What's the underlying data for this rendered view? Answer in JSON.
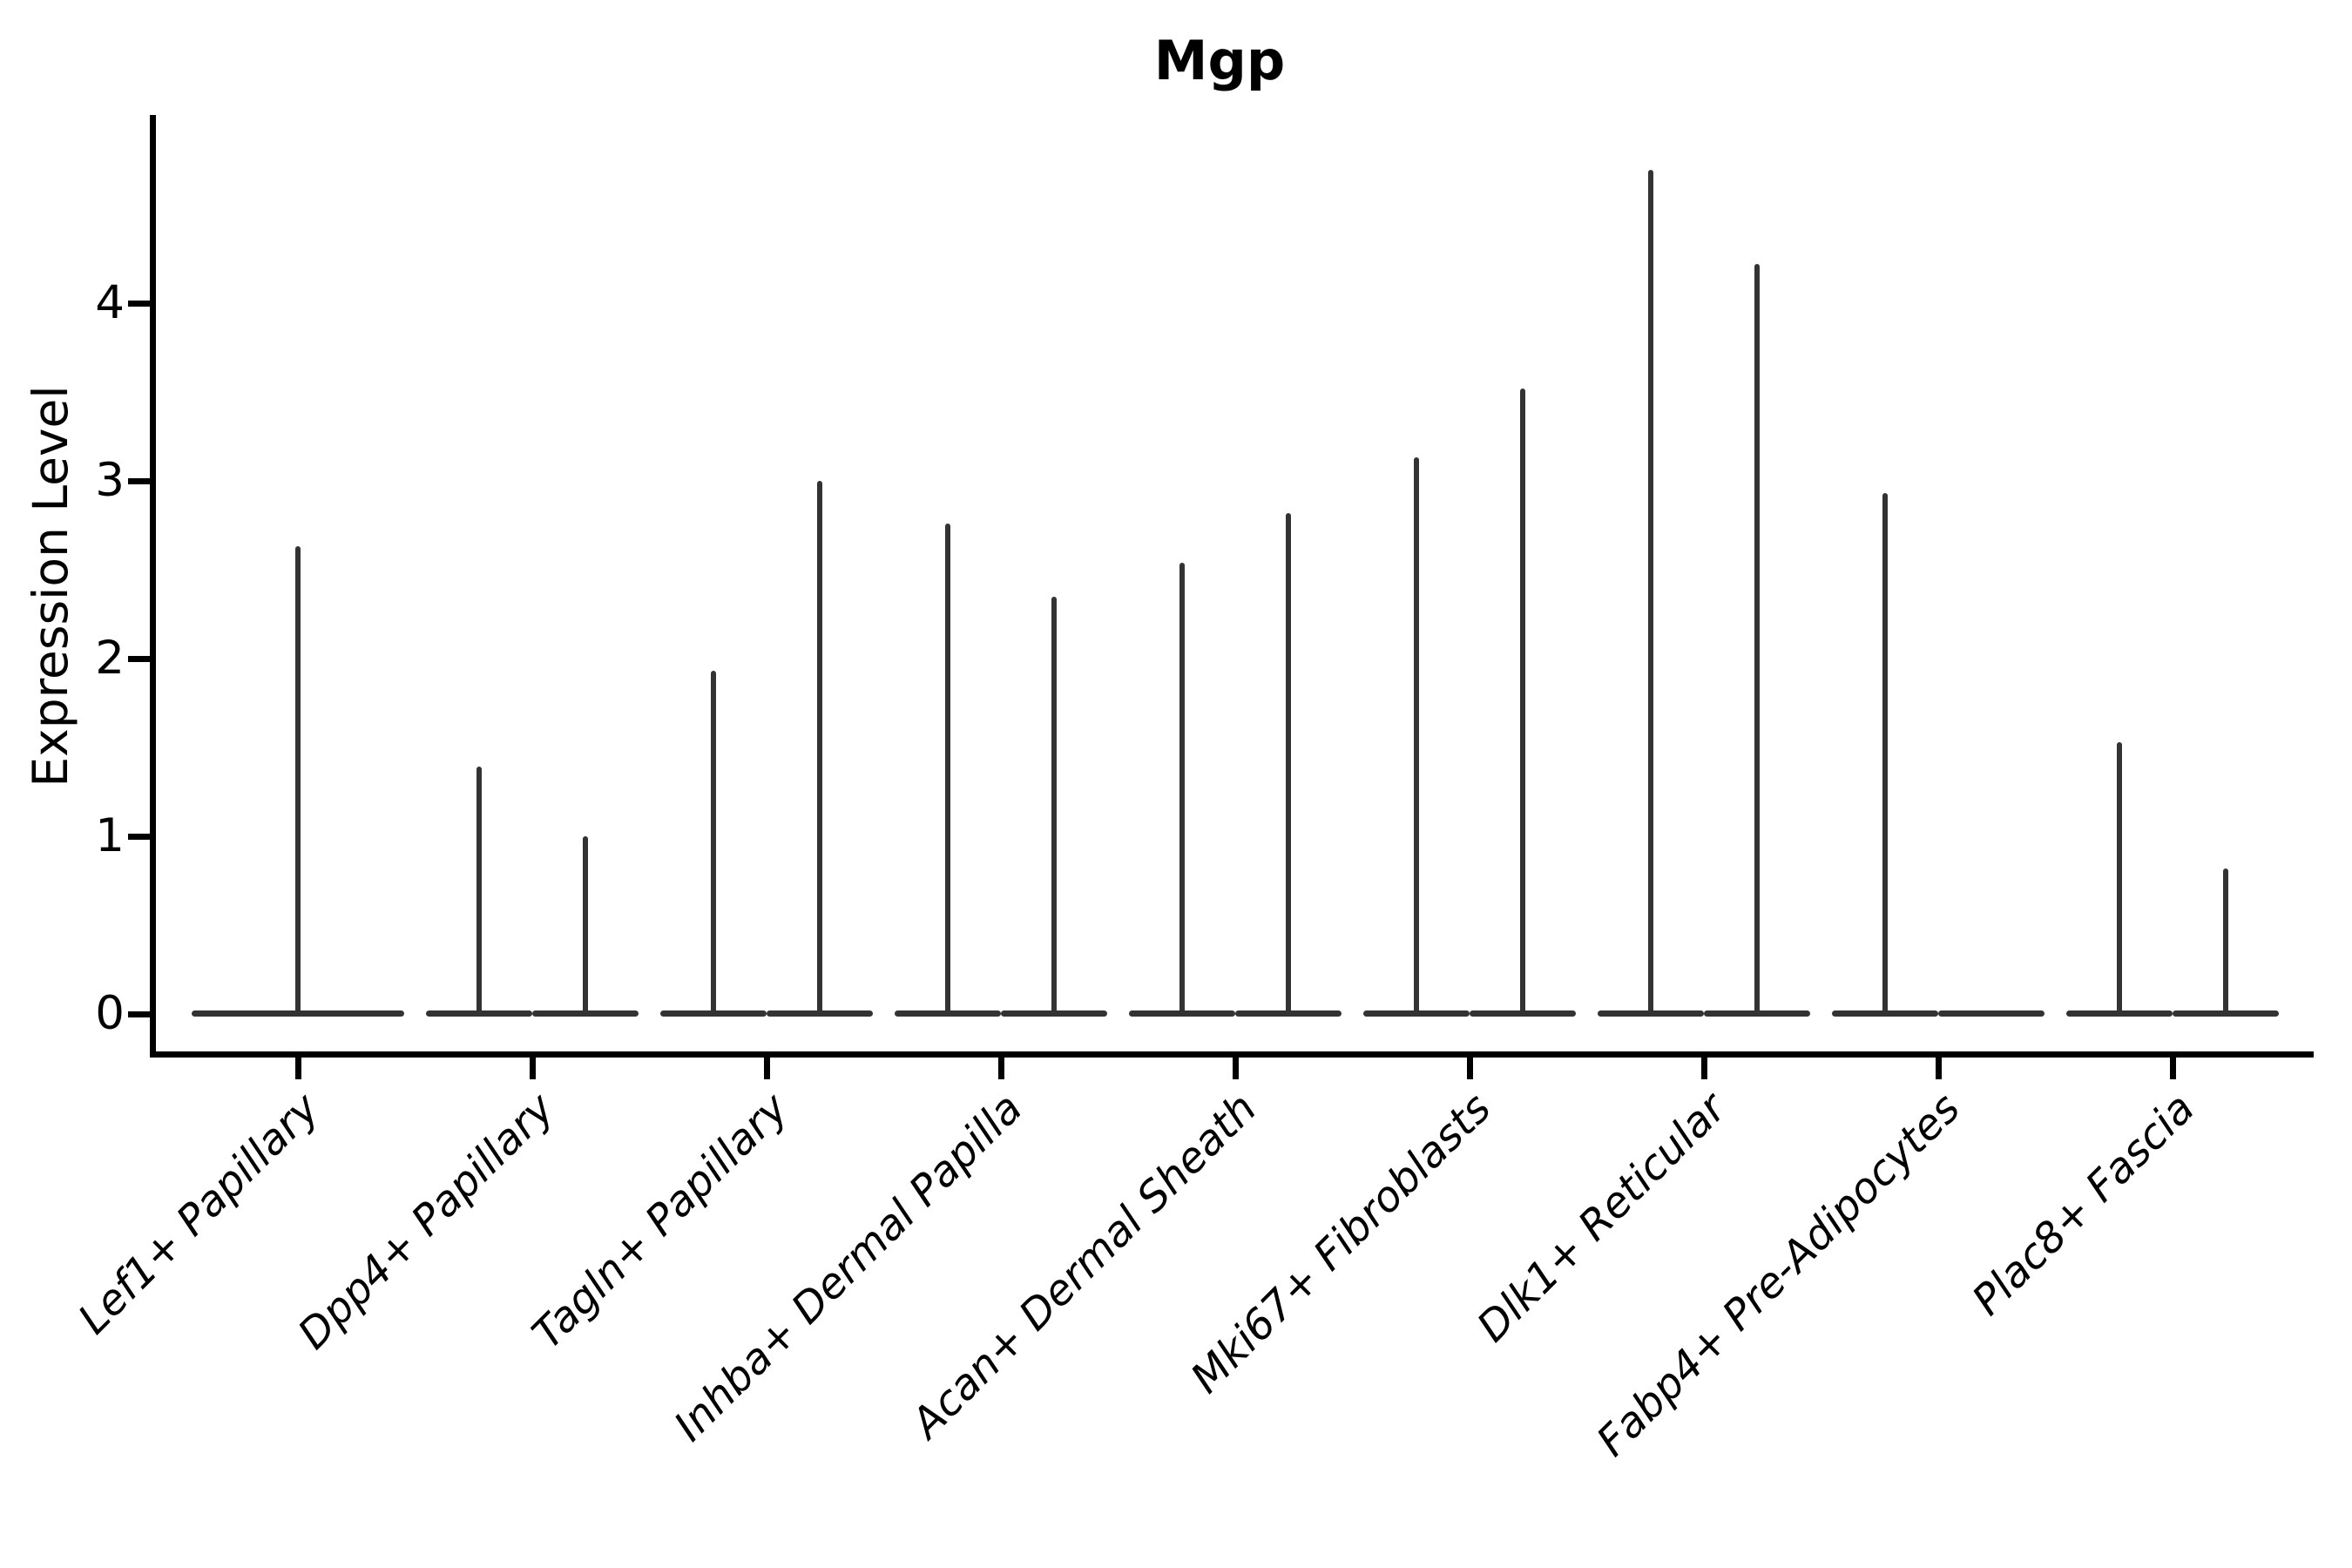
{
  "chart_data": {
    "type": "violin",
    "title": "Mgp",
    "ylabel": "Expression Level",
    "xlabel": "",
    "yticks": [
      "0",
      "1",
      "2",
      "3",
      "4"
    ],
    "ytick_values": [
      0,
      1,
      2,
      3,
      4
    ],
    "ylim": [
      -0.2,
      5.05
    ],
    "grid": "off",
    "legend": "none",
    "violin_color": "#333333",
    "axis_color": "#000000",
    "categories": [
      "Lef1+ Papillary",
      "Dpp4+ Papillary",
      "Tagln+ Papillary",
      "Inhba+ Dermal Papilla",
      "Acan+ Dermal Sheath",
      "Mki67+ Fibroblasts",
      "Dlk1+ Reticular",
      "Fabp4+ Pre-Adipocytes",
      "Plac8+ Fascia"
    ],
    "groups": [
      {
        "category": "Lef1+ Papillary",
        "violins": [
          {
            "position": "full",
            "max": 2.63
          }
        ]
      },
      {
        "category": "Dpp4+ Papillary",
        "violins": [
          {
            "position": "left",
            "max": 1.39
          },
          {
            "position": "right",
            "max": 1.0
          }
        ]
      },
      {
        "category": "Tagln+ Papillary",
        "violins": [
          {
            "position": "left",
            "max": 1.93
          },
          {
            "position": "right",
            "max": 3.0
          }
        ]
      },
      {
        "category": "Inhba+ Dermal Papilla",
        "violins": [
          {
            "position": "left",
            "max": 2.76
          },
          {
            "position": "right",
            "max": 2.35
          }
        ]
      },
      {
        "category": "Acan+ Dermal Sheath",
        "violins": [
          {
            "position": "left",
            "max": 2.54
          },
          {
            "position": "right",
            "max": 2.82
          }
        ]
      },
      {
        "category": "Mki67+ Fibroblasts",
        "violins": [
          {
            "position": "left",
            "max": 3.13
          },
          {
            "position": "right",
            "max": 3.52
          }
        ]
      },
      {
        "category": "Dlk1+ Reticular",
        "violins": [
          {
            "position": "left",
            "max": 4.75
          },
          {
            "position": "right",
            "max": 4.22
          }
        ]
      },
      {
        "category": "Fabp4+ Pre-Adipocytes",
        "violins": [
          {
            "position": "left",
            "max": 2.93
          },
          {
            "position": "right",
            "max": null
          }
        ]
      },
      {
        "category": "Plac8+ Fascia",
        "violins": [
          {
            "position": "left",
            "max": 1.53
          },
          {
            "position": "right",
            "max": 0.82
          }
        ]
      }
    ],
    "description": "Violin plot of Mgp expression; violins collapse to a flat baseline at 0 with a thin spike up to each population's maximum expression."
  }
}
